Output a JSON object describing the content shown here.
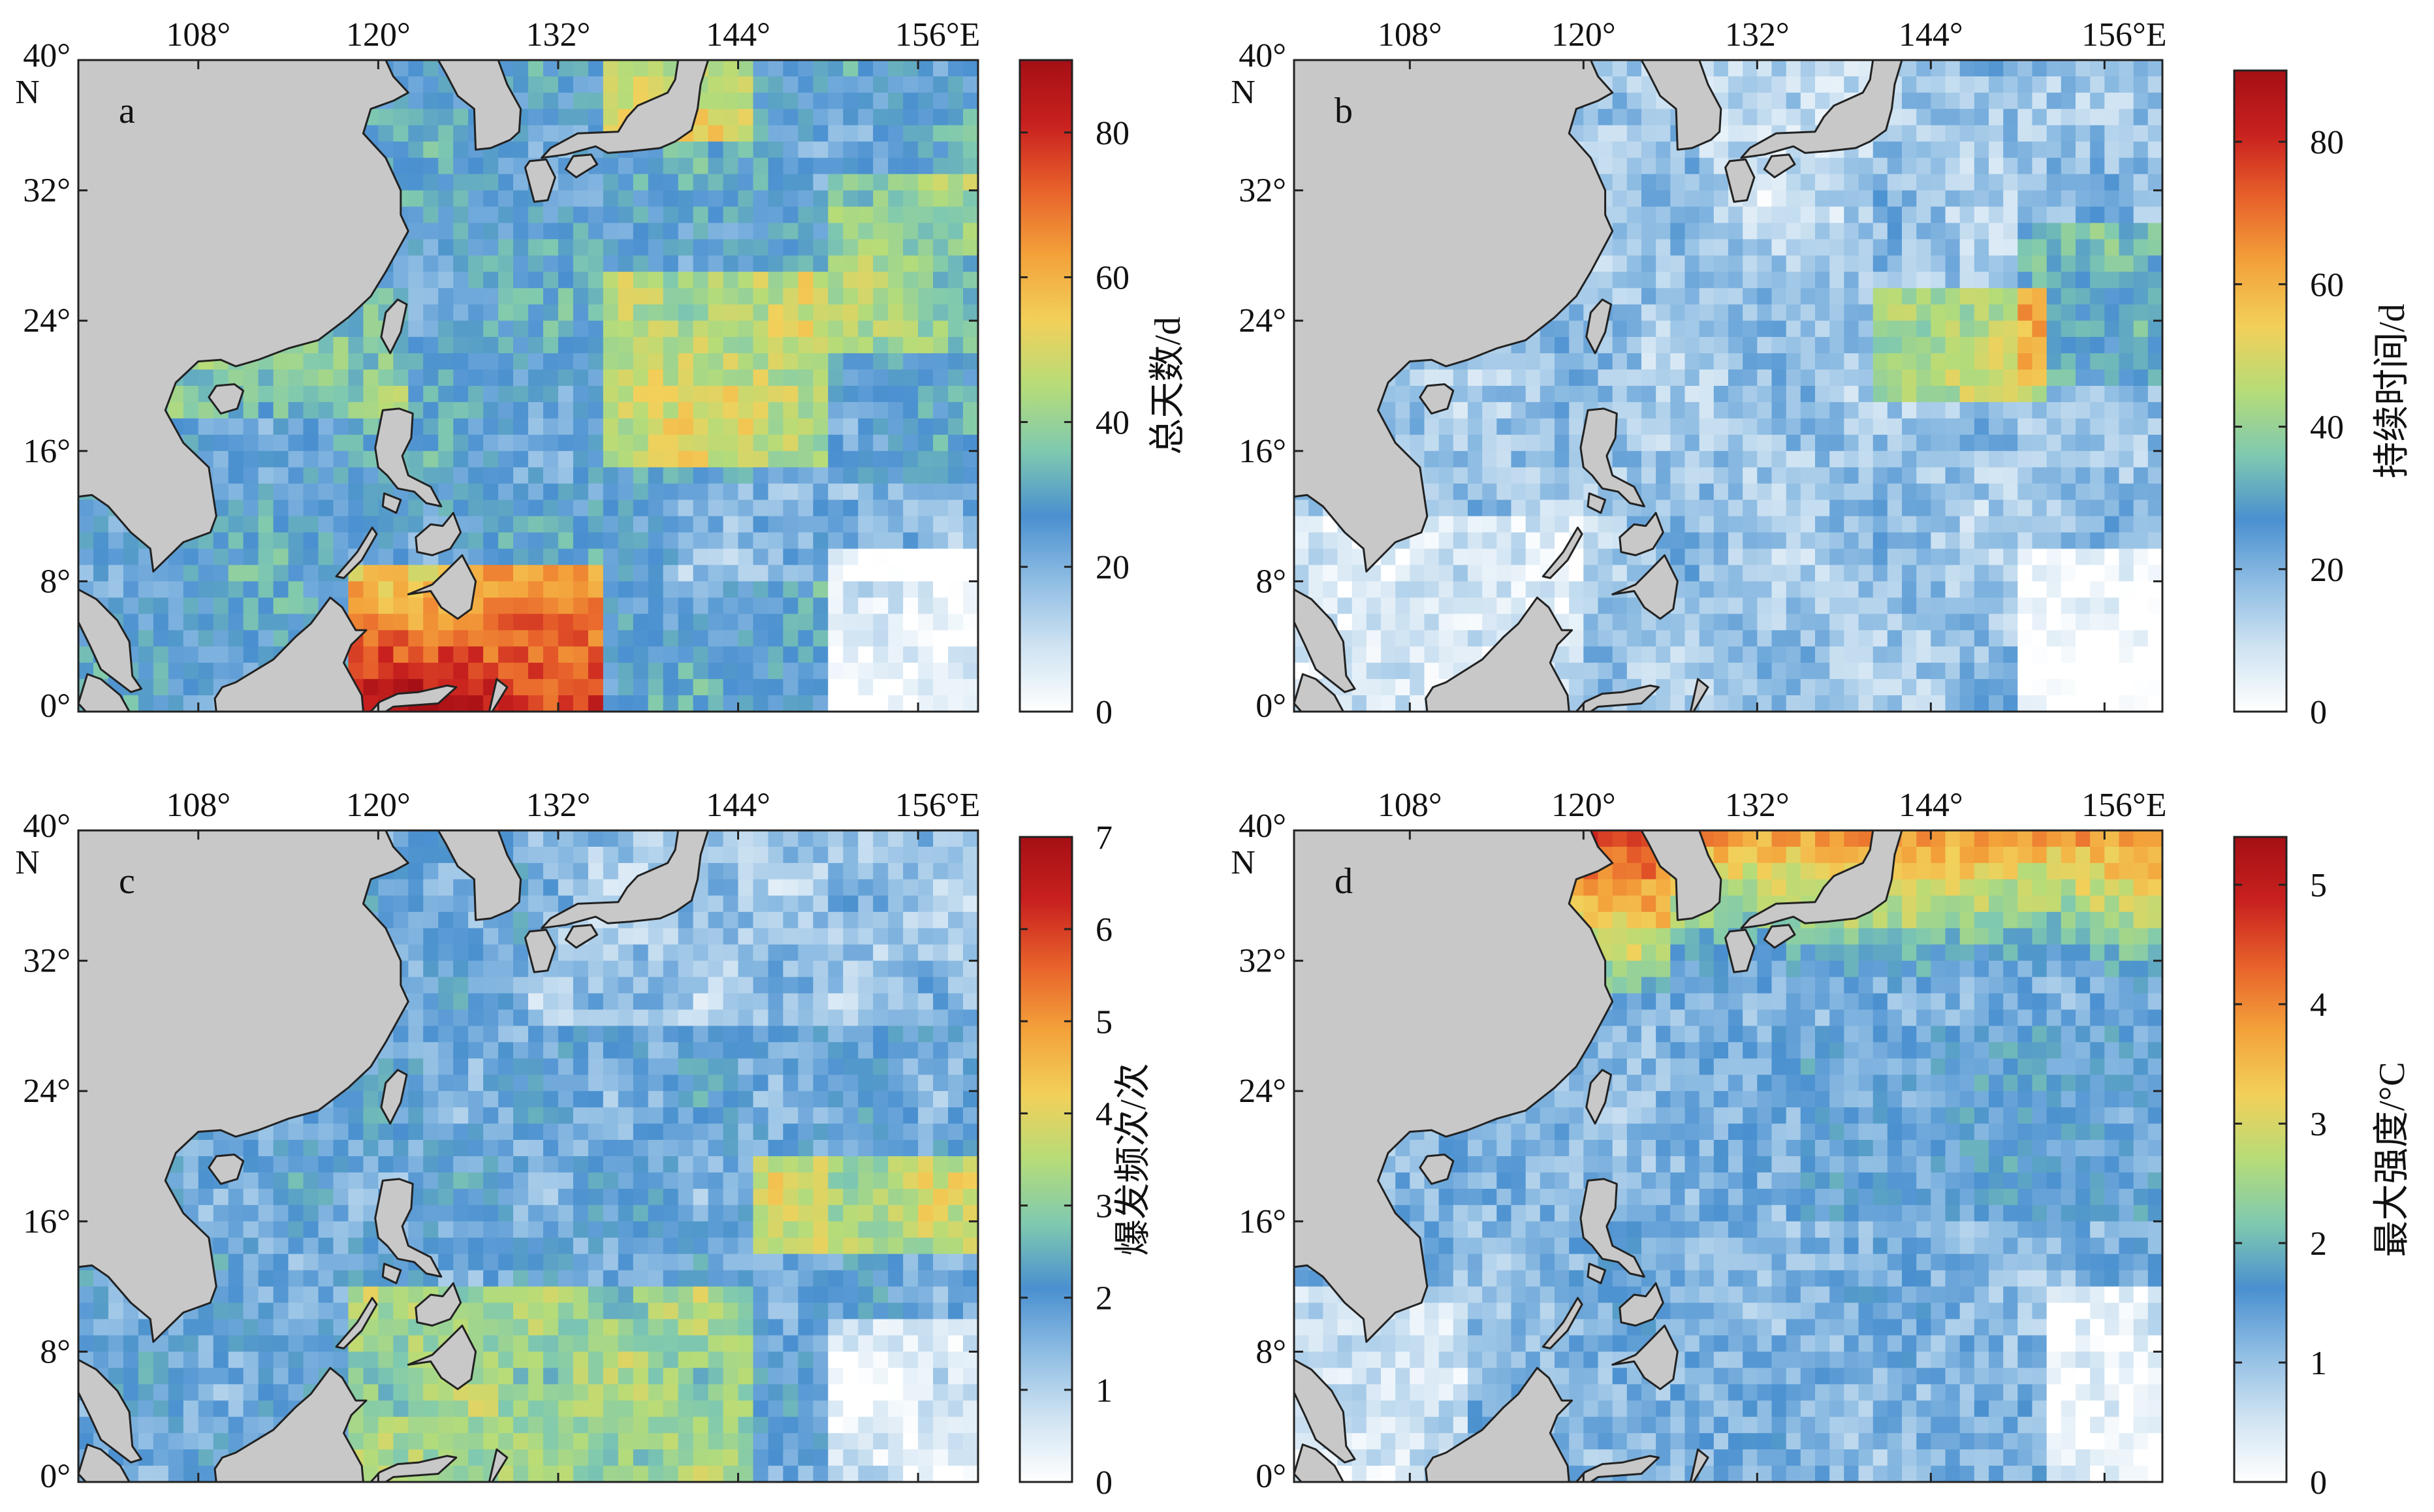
{
  "figure": {
    "colors": {
      "land": "#c8c8c8",
      "coast": "#222222",
      "frame": "#222222",
      "colormap": [
        "#ffffff",
        "#cfe3f2",
        "#8fbde3",
        "#4a90d0",
        "#7fc9b0",
        "#b6dc78",
        "#f2d05a",
        "#f3a23a",
        "#e8622b",
        "#c9211f",
        "#a50f15"
      ]
    },
    "panels": [
      {
        "id": "a",
        "letter": "a",
        "lon_ticks": [
          "108°",
          "120°",
          "132°",
          "144°",
          "156°E"
        ],
        "lat_ticks": [
          "40°",
          "32°",
          "24°",
          "16°",
          "8°",
          "0°"
        ],
        "lat_unit": "N",
        "colorbar": {
          "label": "总天数/d",
          "ticks": [
            "80",
            "60",
            "40",
            "20",
            "0"
          ],
          "max": 90
        }
      },
      {
        "id": "b",
        "letter": "b",
        "lon_ticks": [
          "108°",
          "120°",
          "132°",
          "144°",
          "156°E"
        ],
        "lat_ticks": [
          "40°",
          "32°",
          "24°",
          "16°",
          "8°",
          "0°"
        ],
        "lat_unit": "N",
        "colorbar": {
          "label": "持续时间/d",
          "ticks": [
            "80",
            "60",
            "40",
            "20",
            "0"
          ],
          "max": 90
        }
      },
      {
        "id": "c",
        "letter": "c",
        "lon_ticks": [
          "108°",
          "120°",
          "132°",
          "144°",
          "156°E"
        ],
        "lat_ticks": [
          "40°",
          "32°",
          "24°",
          "16°",
          "8°",
          "0°"
        ],
        "lat_unit": "N",
        "colorbar": {
          "label": "爆发频次/次",
          "ticks": [
            "7",
            "6",
            "5",
            "4",
            "3",
            "2",
            "1",
            "0"
          ],
          "max": 7
        }
      },
      {
        "id": "d",
        "letter": "d",
        "lon_ticks": [
          "108°",
          "120°",
          "132°",
          "144°",
          "156°E"
        ],
        "lat_ticks": [
          "40°",
          "32°",
          "24°",
          "16°",
          "8°",
          "0°"
        ],
        "lat_unit": "N",
        "colorbar": {
          "label": "最大强度/°C",
          "ticks": [
            "5",
            "4",
            "3",
            "2",
            "1",
            "0"
          ],
          "max": 5.4
        }
      }
    ]
  }
}
